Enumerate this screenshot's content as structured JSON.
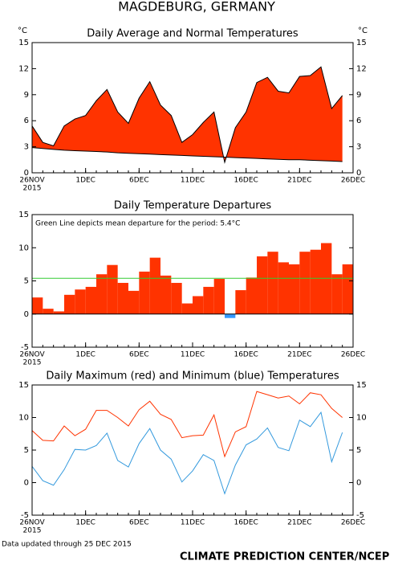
{
  "title": "MAGDEBURG, GERMANY",
  "footer_note": "Data updated through 25 DEC 2015",
  "credit": "CLIMATE PREDICTION CENTER/NCEP",
  "chart_data": [
    {
      "type": "area",
      "title": "Daily Average and Normal Temperatures",
      "y_unit": "°C",
      "right_axis_labels": true,
      "categories": [
        "26NOV",
        null,
        null,
        null,
        null,
        "1DEC",
        null,
        null,
        null,
        null,
        "6DEC",
        null,
        null,
        null,
        null,
        "11DEC",
        null,
        null,
        null,
        null,
        "16DEC",
        null,
        null,
        null,
        null,
        "21DEC",
        null,
        null,
        null,
        null
      ],
      "x_end_label": "26DEC",
      "x_sublabel": "2015",
      "ylim": [
        0,
        15
      ],
      "yticks": [
        0,
        3,
        6,
        9,
        12,
        15
      ],
      "fill_color": "#ff3300",
      "series": [
        {
          "color": "#000000",
          "values": [
            5.4,
            3.5,
            3.1,
            5.4,
            6.2,
            6.6,
            8.3,
            9.6,
            7.0,
            5.7,
            8.6,
            10.5,
            7.8,
            6.6,
            3.5,
            4.4,
            5.8,
            7.0,
            1.2,
            5.2,
            7.0,
            10.4,
            11.0,
            9.4,
            9.2,
            11.1,
            11.2,
            12.2,
            7.4,
            8.9
          ]
        },
        {
          "color": "#000000",
          "values": [
            2.9,
            2.8,
            2.7,
            2.6,
            2.55,
            2.5,
            2.45,
            2.4,
            2.3,
            2.25,
            2.2,
            2.15,
            2.1,
            2.05,
            2.0,
            1.95,
            1.9,
            1.85,
            1.8,
            1.75,
            1.7,
            1.65,
            1.6,
            1.55,
            1.5,
            1.5,
            1.45,
            1.4,
            1.35,
            1.3
          ]
        }
      ]
    },
    {
      "type": "bar",
      "title": "Daily Temperature Departures",
      "right_axis_labels": false,
      "categories": [
        "26NOV",
        null,
        null,
        null,
        null,
        "1DEC",
        null,
        null,
        null,
        null,
        "6DEC",
        null,
        null,
        null,
        null,
        "11DEC",
        null,
        null,
        null,
        null,
        "16DEC",
        null,
        null,
        null,
        null,
        "21DEC",
        null,
        null,
        null,
        null
      ],
      "x_end_label": "26DEC",
      "x_sublabel": "2015",
      "ylim": [
        -5,
        15
      ],
      "yticks": [
        -5,
        0,
        5,
        10,
        15
      ],
      "positive_color": "#ff3300",
      "negative_color": "#3399ff",
      "values": [
        2.5,
        0.8,
        0.4,
        2.9,
        3.7,
        4.1,
        6.0,
        7.4,
        4.7,
        3.5,
        6.4,
        8.5,
        5.8,
        4.7,
        1.6,
        2.7,
        4.1,
        5.3,
        -0.6,
        3.6,
        5.5,
        8.7,
        9.4,
        7.8,
        7.5,
        9.4,
        9.7,
        10.7,
        6.0,
        7.5
      ],
      "mean_line": 5.4,
      "mean_line_color": "#33cc33",
      "annotation": "Green Line depicts mean departure for the period: 5.4°C"
    },
    {
      "type": "line",
      "title": "Daily Maximum (red) and Minimum (blue) Temperatures",
      "right_axis_labels": true,
      "categories": [
        "26NOV",
        null,
        null,
        null,
        null,
        "1DEC",
        null,
        null,
        null,
        null,
        "6DEC",
        null,
        null,
        null,
        null,
        "11DEC",
        null,
        null,
        null,
        null,
        "16DEC",
        null,
        null,
        null,
        null,
        "21DEC",
        null,
        null,
        null,
        null
      ],
      "x_end_label": "26DEC",
      "x_sublabel": "2015",
      "ylim": [
        -5,
        15
      ],
      "yticks": [
        -5,
        0,
        5,
        10,
        15
      ],
      "series": [
        {
          "color": "#ff3300",
          "values": [
            8.0,
            6.5,
            6.4,
            8.7,
            7.2,
            8.2,
            11.1,
            11.1,
            10.0,
            8.7,
            11.2,
            12.5,
            10.5,
            9.7,
            6.9,
            7.2,
            7.3,
            10.4,
            4.0,
            7.8,
            8.6,
            14.0,
            13.5,
            13.0,
            13.3,
            12.1,
            13.8,
            13.5,
            11.4,
            10.0
          ]
        },
        {
          "color": "#3399dd",
          "values": [
            2.5,
            0.3,
            -0.4,
            2.0,
            5.1,
            5.0,
            5.7,
            7.6,
            3.4,
            2.4,
            6.0,
            8.3,
            5.0,
            3.6,
            0.1,
            1.8,
            4.3,
            3.4,
            -1.7,
            2.7,
            5.8,
            6.7,
            8.4,
            5.4,
            4.9,
            9.6,
            8.6,
            10.8,
            3.2,
            7.7
          ]
        }
      ]
    }
  ]
}
